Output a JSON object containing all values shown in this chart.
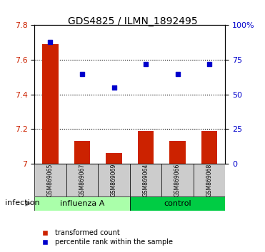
{
  "title": "GDS4825 / ILMN_1892495",
  "samples": [
    "GSM869065",
    "GSM869067",
    "GSM869069",
    "GSM869064",
    "GSM869066",
    "GSM869068"
  ],
  "groups": [
    "influenza A",
    "influenza A",
    "influenza A",
    "control",
    "control",
    "control"
  ],
  "group_labels": [
    "influenza A",
    "control"
  ],
  "group_colors": [
    "#90EE90",
    "#00CC00"
  ],
  "bar_values": [
    7.69,
    7.13,
    7.06,
    7.19,
    7.13,
    7.19
  ],
  "scatter_values": [
    88,
    65,
    55,
    72,
    65,
    72
  ],
  "ylim_left": [
    7.0,
    7.8
  ],
  "ylim_right": [
    0,
    100
  ],
  "yticks_left": [
    7.0,
    7.2,
    7.4,
    7.6,
    7.8
  ],
  "ytick_labels_left": [
    "7",
    "7.2",
    "7.4",
    "7.6",
    "7.8"
  ],
  "yticks_right": [
    0,
    25,
    50,
    75,
    100
  ],
  "ytick_labels_right": [
    "0",
    "25",
    "50",
    "75",
    "100%"
  ],
  "bar_color": "#CC2200",
  "scatter_color": "#0000CC",
  "bar_width": 0.5,
  "legend_bar_label": "transformed count",
  "legend_scatter_label": "percentile rank within the sample",
  "infection_label": "infection",
  "group_bg_colors": [
    "#CCFFCC",
    "#00BB00"
  ],
  "dotted_line_color": "#000000",
  "tick_color_left": "#CC2200",
  "tick_color_right": "#0000CC"
}
